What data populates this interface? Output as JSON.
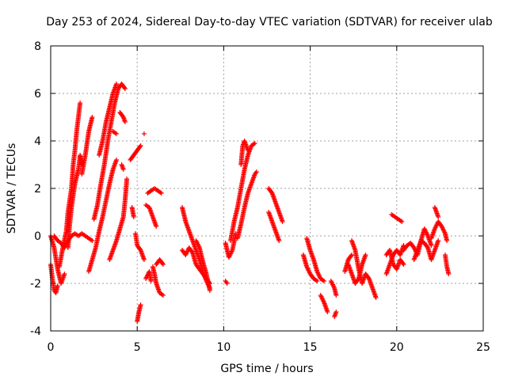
{
  "chart_data": {
    "type": "scatter",
    "title": "Day 253 of 2024, Sidereal Day-to-day VTEC variation (SDTVAR) for receiver ulab",
    "xlabel": "GPS time / hours",
    "ylabel": "SDTVAR / TECUs",
    "xlim": [
      0,
      25
    ],
    "ylim": [
      -4,
      8
    ],
    "xticks": [
      0,
      5,
      10,
      15,
      20,
      25
    ],
    "yticks": [
      -4,
      -2,
      0,
      2,
      4,
      6,
      8
    ],
    "grid": true,
    "marker": "+",
    "color": "#ff0000",
    "tracks": [
      [
        [
          0.0,
          -1.2
        ],
        [
          0.1,
          -1.8
        ],
        [
          0.2,
          -2.3
        ],
        [
          0.3,
          -2.4
        ],
        [
          0.4,
          -2.1
        ]
      ],
      [
        [
          0.0,
          0.0
        ],
        [
          0.2,
          -0.5
        ],
        [
          0.4,
          -1.4
        ],
        [
          0.6,
          -2.0
        ],
        [
          0.8,
          -1.6
        ]
      ],
      [
        [
          0.5,
          -1.3
        ],
        [
          0.7,
          -0.5
        ],
        [
          0.9,
          0.2
        ],
        [
          1.0,
          1.0
        ],
        [
          1.2,
          2.0
        ],
        [
          1.3,
          3.0
        ],
        [
          1.4,
          3.6
        ],
        [
          1.5,
          4.4
        ],
        [
          1.6,
          5.0
        ],
        [
          1.7,
          5.6
        ]
      ],
      [
        [
          1.0,
          -0.5
        ],
        [
          1.1,
          0.5
        ],
        [
          1.2,
          1.2
        ],
        [
          1.4,
          2.2
        ],
        [
          1.6,
          2.8
        ],
        [
          1.7,
          3.4
        ],
        [
          1.8,
          3.0
        ]
      ],
      [
        [
          0.2,
          0.0
        ],
        [
          0.4,
          -0.2
        ],
        [
          0.6,
          -0.3
        ],
        [
          0.8,
          -0.5
        ],
        [
          1.0,
          -0.2
        ],
        [
          1.2,
          0.0
        ],
        [
          1.4,
          0.1
        ],
        [
          1.6,
          0.0
        ],
        [
          1.8,
          0.1
        ],
        [
          2.0,
          0.0
        ],
        [
          2.2,
          -0.1
        ],
        [
          2.4,
          -0.2
        ]
      ],
      [
        [
          1.8,
          2.6
        ],
        [
          2.0,
          3.4
        ],
        [
          2.2,
          4.4
        ],
        [
          2.4,
          5.0
        ]
      ],
      [
        [
          2.5,
          0.7
        ],
        [
          2.7,
          1.3
        ],
        [
          2.9,
          2.2
        ],
        [
          3.1,
          3.0
        ],
        [
          3.3,
          4.0
        ],
        [
          3.5,
          4.8
        ],
        [
          3.7,
          5.6
        ],
        [
          3.9,
          6.2
        ],
        [
          4.1,
          6.4
        ],
        [
          4.3,
          6.2
        ]
      ],
      [
        [
          2.8,
          3.4
        ],
        [
          3.0,
          4.0
        ],
        [
          3.2,
          4.8
        ],
        [
          3.4,
          5.4
        ],
        [
          3.6,
          6.0
        ],
        [
          3.8,
          6.4
        ]
      ],
      [
        [
          2.2,
          -1.5
        ],
        [
          2.4,
          -1.0
        ],
        [
          2.6,
          -0.5
        ],
        [
          2.8,
          0.2
        ],
        [
          3.0,
          0.8
        ],
        [
          3.2,
          1.5
        ],
        [
          3.4,
          2.2
        ],
        [
          3.6,
          2.8
        ],
        [
          3.8,
          3.2
        ]
      ],
      [
        [
          3.4,
          -1.0
        ],
        [
          3.6,
          -0.6
        ],
        [
          3.8,
          -0.2
        ],
        [
          4.0,
          0.3
        ],
        [
          4.2,
          0.8
        ],
        [
          4.3,
          1.5
        ],
        [
          4.4,
          2.4
        ]
      ],
      [
        [
          4.0,
          5.2
        ],
        [
          4.2,
          5.0
        ],
        [
          4.3,
          4.8
        ]
      ],
      [
        [
          4.1,
          3.0
        ],
        [
          4.2,
          2.8
        ]
      ],
      [
        [
          3.6,
          4.4
        ],
        [
          3.8,
          4.3
        ]
      ],
      [
        [
          4.6,
          3.2
        ],
        [
          4.8,
          3.4
        ],
        [
          5.0,
          3.6
        ],
        [
          5.2,
          3.8
        ]
      ],
      [
        [
          4.7,
          1.2
        ],
        [
          4.8,
          0.8
        ]
      ],
      [
        [
          4.9,
          0.1
        ],
        [
          5.0,
          -0.4
        ],
        [
          5.2,
          -0.6
        ],
        [
          5.4,
          -1.0
        ]
      ],
      [
        [
          5.0,
          -3.6
        ],
        [
          5.1,
          -3.2
        ],
        [
          5.2,
          -2.9
        ]
      ],
      [
        [
          5.4,
          4.3
        ]
      ],
      [
        [
          5.5,
          1.3
        ],
        [
          5.7,
          1.2
        ],
        [
          5.9,
          0.8
        ],
        [
          6.1,
          0.4
        ]
      ],
      [
        [
          5.6,
          1.8
        ],
        [
          5.8,
          1.9
        ],
        [
          6.0,
          2.0
        ],
        [
          6.2,
          1.9
        ],
        [
          6.4,
          1.8
        ]
      ],
      [
        [
          5.5,
          -1.8
        ],
        [
          5.7,
          -1.5
        ],
        [
          5.8,
          -1.9
        ]
      ],
      [
        [
          5.9,
          -1.3
        ],
        [
          6.0,
          -1.6
        ],
        [
          6.1,
          -2.0
        ],
        [
          6.3,
          -2.4
        ],
        [
          6.5,
          -2.5
        ]
      ],
      [
        [
          6.1,
          -1.2
        ],
        [
          6.3,
          -1.0
        ],
        [
          6.5,
          -1.2
        ]
      ],
      [
        [
          7.6,
          1.2
        ],
        [
          7.8,
          0.6
        ],
        [
          8.0,
          0.2
        ],
        [
          8.2,
          -0.2
        ],
        [
          8.4,
          -0.6
        ],
        [
          8.6,
          -1.0
        ],
        [
          8.8,
          -1.5
        ],
        [
          9.0,
          -1.9
        ],
        [
          9.2,
          -2.2
        ]
      ],
      [
        [
          7.6,
          -0.6
        ],
        [
          7.8,
          -0.8
        ],
        [
          8.0,
          -0.5
        ],
        [
          8.2,
          -0.7
        ],
        [
          8.4,
          -1.2
        ],
        [
          8.6,
          -1.4
        ],
        [
          8.8,
          -1.6
        ],
        [
          9.0,
          -1.8
        ],
        [
          9.2,
          -2.0
        ]
      ],
      [
        [
          8.4,
          -0.2
        ],
        [
          8.6,
          -0.5
        ],
        [
          8.8,
          -1.1
        ],
        [
          9.0,
          -1.6
        ],
        [
          9.2,
          -2.3
        ]
      ],
      [
        [
          10.1,
          -1.9
        ],
        [
          10.2,
          -2.0
        ]
      ],
      [
        [
          10.1,
          -0.3
        ],
        [
          10.3,
          -0.9
        ],
        [
          10.5,
          -0.6
        ],
        [
          10.7,
          0.1
        ]
      ],
      [
        [
          10.4,
          -0.2
        ],
        [
          10.6,
          0.6
        ],
        [
          10.8,
          1.2
        ],
        [
          11.0,
          2.0
        ],
        [
          11.2,
          2.8
        ],
        [
          11.4,
          3.4
        ],
        [
          11.6,
          3.8
        ],
        [
          11.8,
          3.9
        ]
      ],
      [
        [
          10.8,
          -0.1
        ],
        [
          11.0,
          0.5
        ],
        [
          11.2,
          1.2
        ],
        [
          11.4,
          1.8
        ],
        [
          11.6,
          2.2
        ],
        [
          11.8,
          2.6
        ],
        [
          11.9,
          2.7
        ]
      ],
      [
        [
          11.0,
          3.0
        ],
        [
          11.1,
          3.8
        ],
        [
          11.2,
          4.0
        ],
        [
          11.4,
          3.6
        ]
      ],
      [
        [
          12.6,
          2.0
        ],
        [
          12.8,
          1.8
        ],
        [
          13.0,
          1.4
        ],
        [
          13.2,
          1.0
        ],
        [
          13.4,
          0.6
        ]
      ],
      [
        [
          12.6,
          1.0
        ],
        [
          12.8,
          0.6
        ],
        [
          13.0,
          0.2
        ],
        [
          13.2,
          -0.2
        ]
      ],
      [
        [
          14.8,
          -0.1
        ],
        [
          15.0,
          -0.6
        ],
        [
          15.2,
          -1.0
        ],
        [
          15.4,
          -1.5
        ],
        [
          15.6,
          -1.8
        ],
        [
          15.8,
          -1.9
        ]
      ],
      [
        [
          14.6,
          -0.8
        ],
        [
          14.8,
          -1.3
        ],
        [
          15.0,
          -1.6
        ],
        [
          15.2,
          -1.8
        ],
        [
          15.4,
          -1.9
        ]
      ],
      [
        [
          15.6,
          -2.5
        ],
        [
          15.8,
          -2.8
        ],
        [
          16.0,
          -3.2
        ]
      ],
      [
        [
          16.2,
          -1.9
        ],
        [
          16.4,
          -2.2
        ],
        [
          16.5,
          -2.5
        ]
      ],
      [
        [
          16.4,
          -3.4
        ],
        [
          16.5,
          -3.2
        ]
      ],
      [
        [
          17.0,
          -1.5
        ],
        [
          17.2,
          -1.0
        ],
        [
          17.4,
          -0.8
        ]
      ],
      [
        [
          17.4,
          -0.2
        ],
        [
          17.6,
          -0.6
        ],
        [
          17.8,
          -1.4
        ],
        [
          18.0,
          -2.0
        ],
        [
          18.2,
          -1.6
        ],
        [
          18.4,
          -1.8
        ],
        [
          18.6,
          -2.2
        ],
        [
          18.8,
          -2.6
        ]
      ],
      [
        [
          17.2,
          -1.2
        ],
        [
          17.4,
          -1.6
        ],
        [
          17.6,
          -2.0
        ],
        [
          17.8,
          -1.8
        ],
        [
          18.0,
          -1.2
        ],
        [
          18.2,
          -0.8
        ]
      ],
      [
        [
          19.4,
          -1.6
        ],
        [
          19.6,
          -1.2
        ],
        [
          19.8,
          -0.8
        ],
        [
          20.0,
          -0.6
        ],
        [
          20.2,
          -0.8
        ],
        [
          20.4,
          -0.4
        ]
      ],
      [
        [
          19.4,
          -0.8
        ],
        [
          19.6,
          -0.6
        ],
        [
          19.8,
          -1.2
        ],
        [
          20.0,
          -1.4
        ],
        [
          20.2,
          -1.0
        ],
        [
          20.4,
          -1.2
        ]
      ],
      [
        [
          19.7,
          0.9
        ],
        [
          19.9,
          0.8
        ],
        [
          20.1,
          0.7
        ],
        [
          20.3,
          0.6
        ]
      ],
      [
        [
          20.4,
          -0.6
        ],
        [
          20.6,
          -0.4
        ],
        [
          20.8,
          -0.3
        ],
        [
          21.0,
          -0.5
        ],
        [
          21.2,
          -0.8
        ],
        [
          21.4,
          -0.2
        ],
        [
          21.6,
          0.3
        ],
        [
          21.8,
          0.0
        ],
        [
          22.0,
          -0.4
        ]
      ],
      [
        [
          21.0,
          -1.0
        ],
        [
          21.2,
          -0.6
        ],
        [
          21.4,
          -0.2
        ],
        [
          21.6,
          -0.3
        ],
        [
          21.8,
          -0.5
        ],
        [
          22.0,
          -1.0
        ],
        [
          22.2,
          -0.6
        ],
        [
          22.4,
          -0.2
        ]
      ],
      [
        [
          22.0,
          -0.1
        ],
        [
          22.2,
          0.3
        ],
        [
          22.4,
          0.6
        ],
        [
          22.6,
          0.4
        ],
        [
          22.8,
          0.1
        ],
        [
          22.9,
          -0.2
        ]
      ],
      [
        [
          22.2,
          1.2
        ],
        [
          22.3,
          1.0
        ],
        [
          22.4,
          0.8
        ]
      ],
      [
        [
          22.8,
          -0.8
        ],
        [
          22.9,
          -1.3
        ],
        [
          23.0,
          -1.6
        ]
      ]
    ]
  }
}
